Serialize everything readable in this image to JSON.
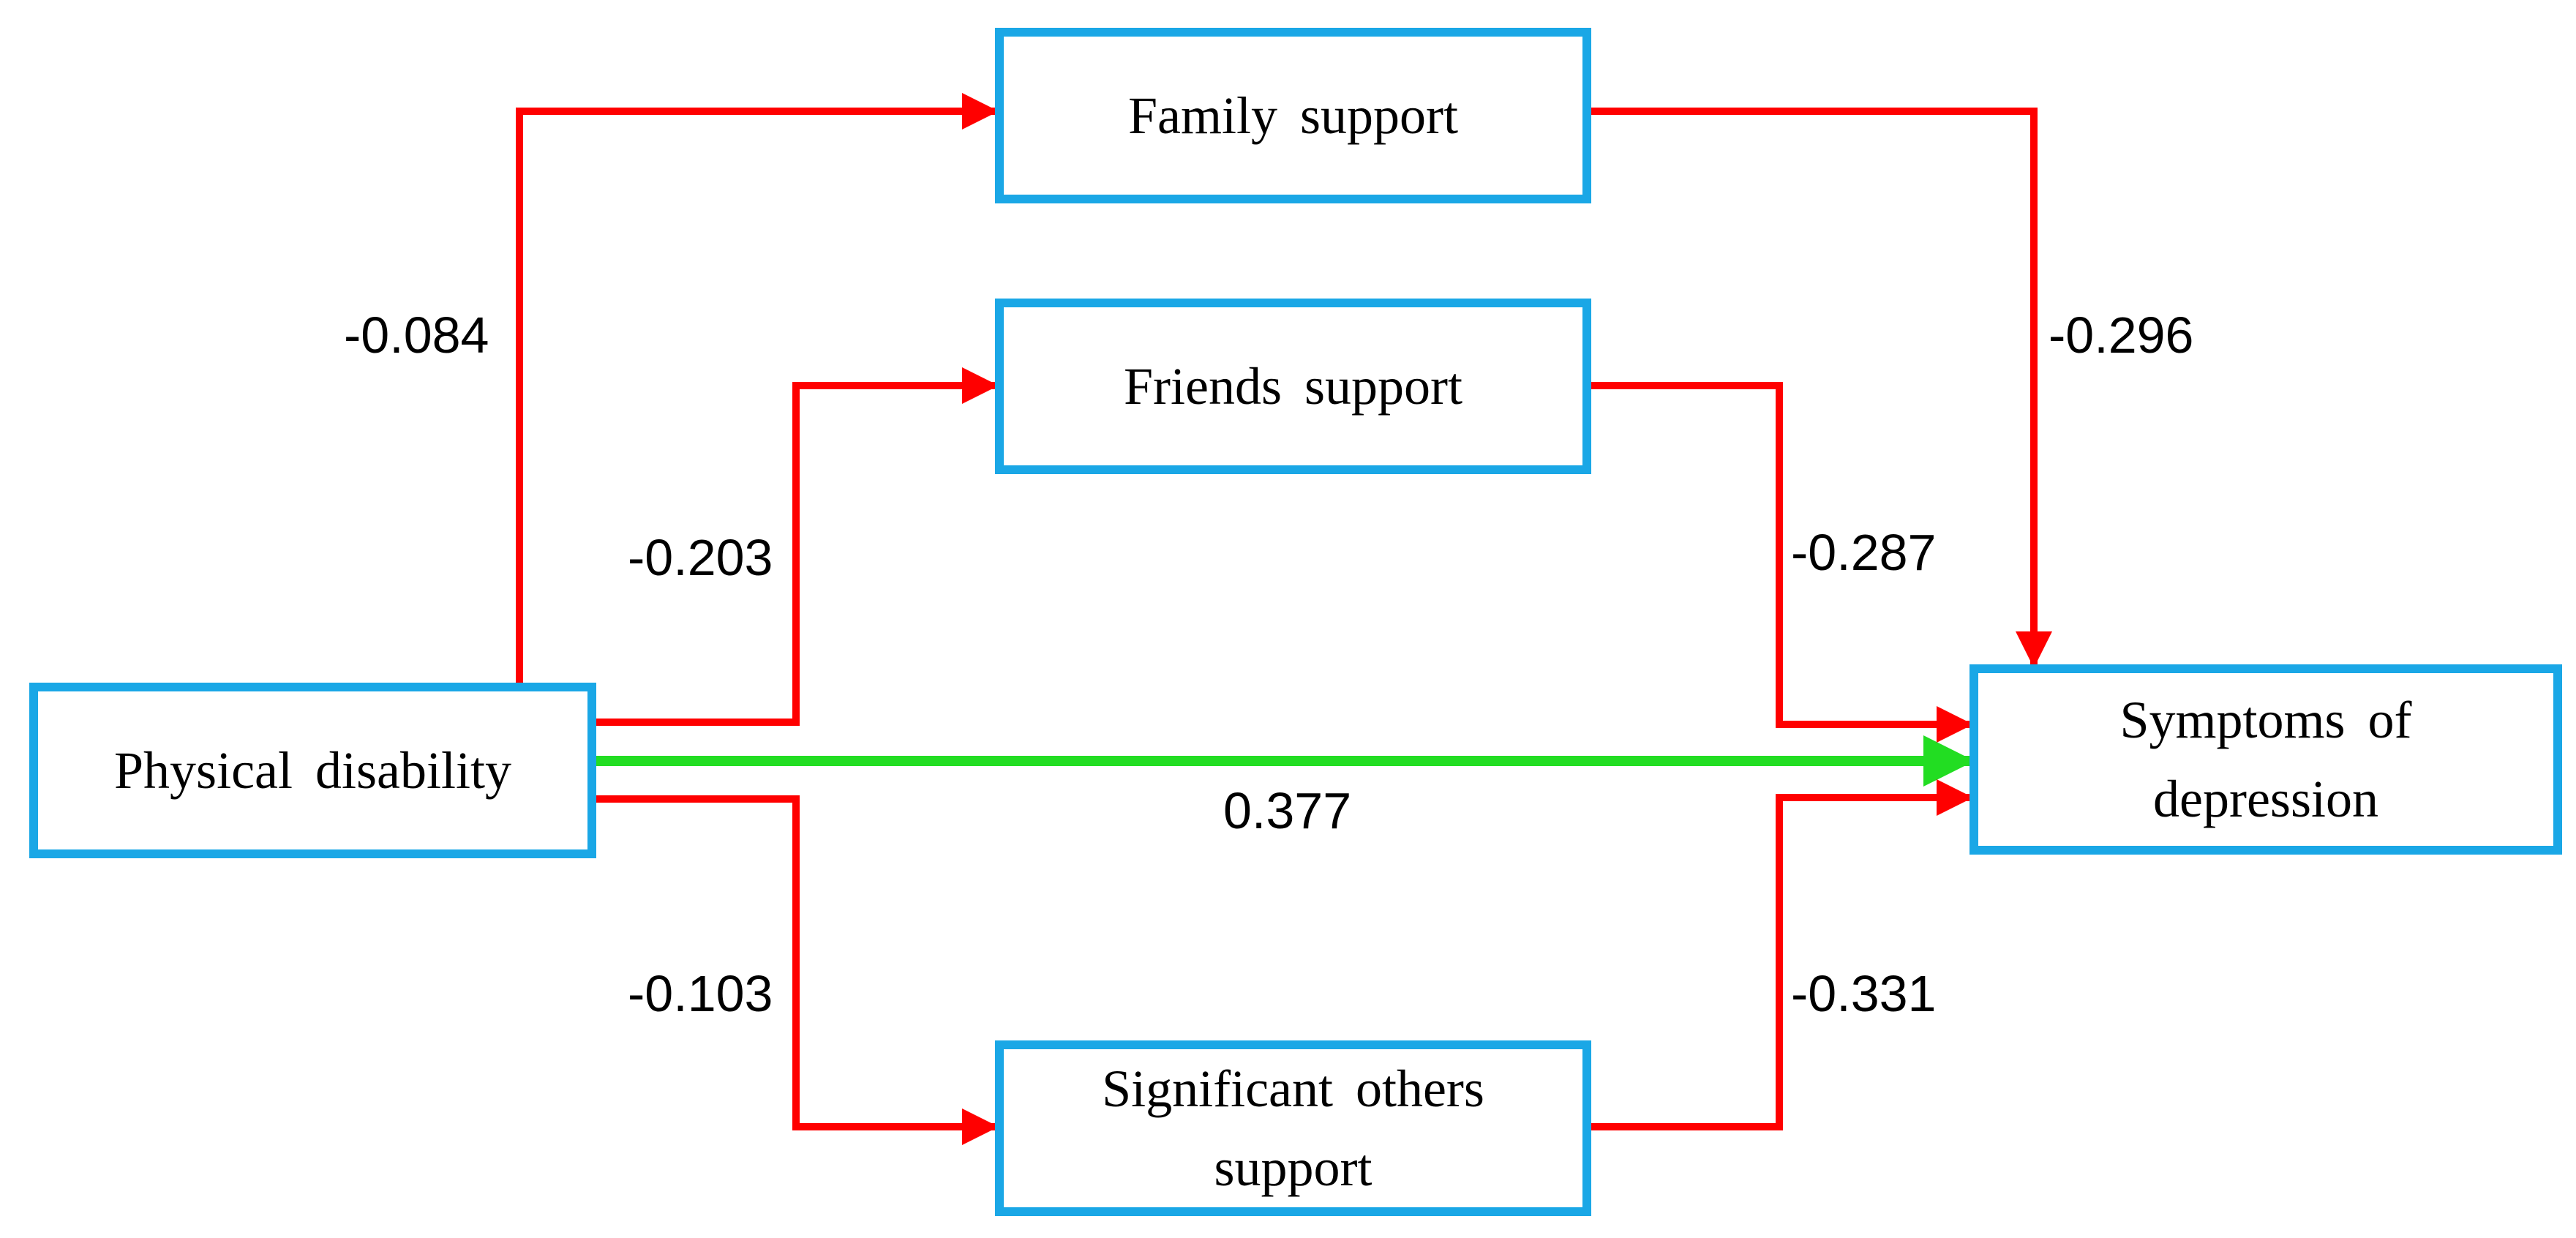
{
  "colors": {
    "box_border": "#1aa7e6",
    "negative_path": "#ff0000",
    "positive_path": "#22dd22",
    "text": "#000000",
    "background": "#ffffff"
  },
  "nodes": {
    "physical_disability": "Physical disability",
    "family_support": "Family support",
    "friends_support": "Friends support",
    "significant_others_line1": "Significant others",
    "significant_others_line2": "support",
    "depression_line1": "Symptoms of",
    "depression_line2": "depression"
  },
  "coefficients": {
    "disability_to_family": "-0.084",
    "disability_to_friends": "-0.203",
    "disability_to_significant_others": "-0.103",
    "disability_to_depression": "0.377",
    "family_to_depression": "-0.296",
    "friends_to_depression": "-0.287",
    "significant_others_to_depression": "-0.331"
  },
  "paths": [
    {
      "from": "Physical disability",
      "to": "Family support",
      "label": "-0.084",
      "sign": "negative"
    },
    {
      "from": "Physical disability",
      "to": "Friends support",
      "label": "-0.203",
      "sign": "negative"
    },
    {
      "from": "Physical disability",
      "to": "Significant others support",
      "label": "-0.103",
      "sign": "negative"
    },
    {
      "from": "Physical disability",
      "to": "Symptoms of depression",
      "label": "0.377",
      "sign": "positive"
    },
    {
      "from": "Family support",
      "to": "Symptoms of depression",
      "label": "-0.296",
      "sign": "negative"
    },
    {
      "from": "Friends support",
      "to": "Symptoms of depression",
      "label": "-0.287",
      "sign": "negative"
    },
    {
      "from": "Significant others support",
      "to": "Symptoms of depression",
      "label": "-0.331",
      "sign": "negative"
    }
  ]
}
